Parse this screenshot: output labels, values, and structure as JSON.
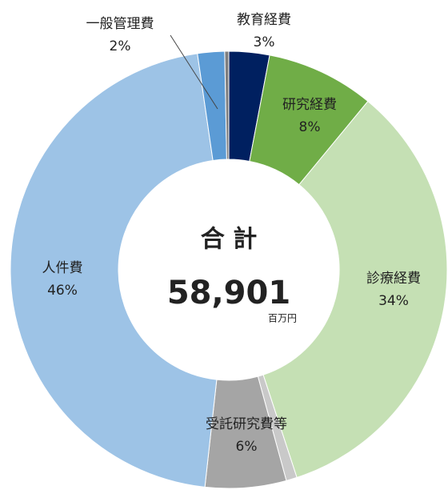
{
  "chart_data": {
    "type": "donut",
    "categories": [
      "教育経費",
      "研究経費",
      "診療経費",
      null,
      "受託研究費等",
      "人件費",
      "一般管理費",
      null
    ],
    "values": [
      3,
      8,
      34,
      0.8,
      6,
      46,
      2,
      0.3
    ],
    "value_labels": [
      "3%",
      "8%",
      "34%",
      null,
      "6%",
      "46%",
      "2%",
      null
    ],
    "colors": [
      "#002060",
      "#70ad47",
      "#c5e0b4",
      "#c9c9c9",
      "#a5a5a5",
      "#9dc3e6",
      "#5b9bd5",
      "#7f7f7f"
    ],
    "center_title": "合 計",
    "center_value": "58,901",
    "center_unit": "百万円"
  }
}
